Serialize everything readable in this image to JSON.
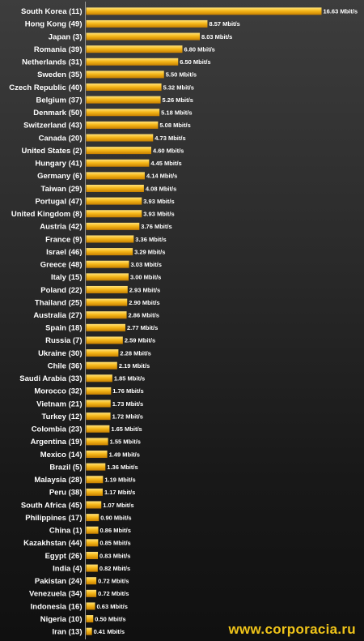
{
  "chart_data": {
    "type": "bar",
    "orientation": "horizontal",
    "title": "",
    "xlabel": "",
    "ylabel": "",
    "unit": "Mbit/s",
    "grid": false,
    "legend": "none",
    "categories": [
      "South Korea (11)",
      "Hong Kong (49)",
      "Japan (3)",
      "Romania (39)",
      "Netherlands (31)",
      "Sweden (35)",
      "Czech Republic (40)",
      "Belgium (37)",
      "Denmark (50)",
      "Switzerland (43)",
      "Canada (20)",
      "United States (2)",
      "Hungary (41)",
      "Germany (6)",
      "Taiwan (29)",
      "Portugal (47)",
      "United Kingdom (8)",
      "Austria (42)",
      "France (9)",
      "Israel (46)",
      "Greece (48)",
      "Italy (15)",
      "Poland (22)",
      "Thailand (25)",
      "Australia (27)",
      "Spain (18)",
      "Russia (7)",
      "Ukraine (30)",
      "Chile (36)",
      "Saudi Arabia (33)",
      "Morocco (32)",
      "Vietnam (21)",
      "Turkey (12)",
      "Colombia (23)",
      "Argentina (19)",
      "Mexico (14)",
      "Brazil (5)",
      "Malaysia (28)",
      "Peru (38)",
      "South Africa (45)",
      "Philippines (17)",
      "China (1)",
      "Kazakhstan (44)",
      "Egypt (26)",
      "India (4)",
      "Pakistan (24)",
      "Venezuela (34)",
      "Indonesia (16)",
      "Nigeria (10)",
      "Iran (13)"
    ],
    "values": [
      16.63,
      8.57,
      8.03,
      6.8,
      6.5,
      5.5,
      5.32,
      5.26,
      5.18,
      5.08,
      4.73,
      4.6,
      4.45,
      4.14,
      4.08,
      3.93,
      3.93,
      3.76,
      3.36,
      3.29,
      3.03,
      3.0,
      2.93,
      2.9,
      2.86,
      2.77,
      2.59,
      2.28,
      2.19,
      1.85,
      1.76,
      1.73,
      1.72,
      1.65,
      1.55,
      1.49,
      1.36,
      1.19,
      1.17,
      1.07,
      0.9,
      0.86,
      0.85,
      0.83,
      0.82,
      0.72,
      0.72,
      0.63,
      0.5,
      0.41
    ],
    "value_labels": [
      "16.63 Mbit/s",
      "8.57 Mbit/s",
      "8.03 Mbit/s",
      "6.80 Mbit/s",
      "6.50 Mbit/s",
      "5.50 Mbit/s",
      "5.32 Mbit/s",
      "5.26 Mbit/s",
      "5.18 Mbit/s",
      "5.08 Mbit/s",
      "4.73 Mbit/s",
      "4.60 Mbit/s",
      "4.45 Mbit/s",
      "4.14 Mbit/s",
      "4.08 Mbit/s",
      "3.93 Mbit/s",
      "3.93 Mbit/s",
      "3.76 Mbit/s",
      "3.36 Mbit/s",
      "3.29 Mbit/s",
      "3.03 Mbit/s",
      "3.00 Mbit/s",
      "2.93 Mbit/s",
      "2.90 Mbit/s",
      "2.86 Mbit/s",
      "2.77 Mbit/s",
      "2.59 Mbit/s",
      "2.28 Mbit/s",
      "2.19 Mbit/s",
      "1.85 Mbit/s",
      "1.76 Mbit/s",
      "1.73 Mbit/s",
      "1.72 Mbit/s",
      "1.65 Mbit/s",
      "1.55 Mbit/s",
      "1.49 Mbit/s",
      "1.36 Mbit/s",
      "1.19 Mbit/s",
      "1.17 Mbit/s",
      "1.07 Mbit/s",
      "0.90 Mbit/s",
      "0.86 Mbit/s",
      "0.85 Mbit/s",
      "0.83 Mbit/s",
      "0.82 Mbit/s",
      "0.72 Mbit/s",
      "0.72 Mbit/s",
      "0.63 Mbit/s",
      "0.50 Mbit/s",
      "0.41 Mbit/s"
    ],
    "xlim": [
      0,
      16.63
    ]
  },
  "colors": {
    "bar_light": "#ffe27a",
    "bar_mid": "#f6b81a",
    "bar_dark": "#c77f00",
    "axis": "#9a9a9a",
    "text": "#ffffff",
    "watermark": "#f0c419"
  },
  "watermark": "www.corporacia.ru"
}
